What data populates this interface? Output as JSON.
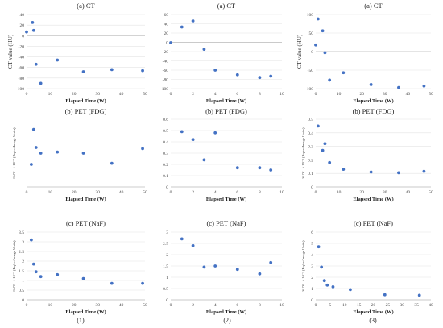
{
  "chart_data": [
    {
      "type": "scatter",
      "title": "(a) CT",
      "xlabel": "Elapsed Time (W)",
      "ylabel": "CT value (HU)",
      "xlim": [
        0,
        50
      ],
      "ylim": [
        -100,
        40
      ],
      "xticks": [
        0,
        10,
        20,
        30,
        40,
        50
      ],
      "yticks": [
        -100,
        -80,
        -60,
        -40,
        -20,
        0,
        20,
        40
      ],
      "grid": true,
      "color": "#4472c4",
      "x": [
        0,
        2.5,
        3,
        4,
        6,
        13,
        24,
        36,
        49
      ],
      "y": [
        7,
        25,
        10,
        -54,
        -90,
        -46,
        -68,
        -64,
        -66
      ]
    },
    {
      "type": "scatter",
      "title": "(a) CT",
      "xlabel": "Elapsed Time (W)",
      "ylabel": "",
      "xlim": [
        0,
        10
      ],
      "ylim": [
        -100,
        60
      ],
      "xticks": [
        0,
        2,
        4,
        6,
        8,
        10
      ],
      "yticks": [
        -100,
        -80,
        -60,
        -40,
        -20,
        0,
        20,
        40,
        60
      ],
      "grid": true,
      "color": "#4472c4",
      "x": [
        0,
        1,
        2,
        3,
        4,
        6,
        8,
        9
      ],
      "y": [
        -1,
        33,
        46,
        -15,
        -60,
        -70,
        -76,
        -73
      ]
    },
    {
      "type": "scatter",
      "title": "(a) CT",
      "xlabel": "Elapsed Time (W)",
      "ylabel": "CT value (HU)",
      "xlim": [
        0,
        50
      ],
      "ylim": [
        -100,
        100
      ],
      "xticks": [
        0,
        10,
        20,
        30,
        40,
        50
      ],
      "yticks": [
        -100,
        -50,
        0,
        50,
        100
      ],
      "grid": true,
      "color": "#4472c4",
      "x": [
        0,
        1,
        3,
        4,
        6,
        12,
        24,
        36,
        47
      ],
      "y": [
        18,
        88,
        56,
        -3,
        -77,
        -57,
        -89,
        -97,
        -93
      ]
    },
    {
      "type": "scatter",
      "title": "(b) PET (FDG)",
      "xlabel": "Elapsed Time (W)",
      "ylabel": "SUV",
      "yunit": "× 10⁻³ (Bq/cc/Image Units)",
      "xlim": [
        0,
        50
      ],
      "ylim": [
        0,
        0.3
      ],
      "xticks": [
        0,
        10,
        20,
        30,
        40,
        50
      ],
      "yticks": [],
      "grid": false,
      "color": "#4472c4",
      "x": [
        2,
        3,
        4,
        6,
        13,
        24,
        36,
        49
      ],
      "y": [
        0.1,
        0.255,
        0.175,
        0.15,
        0.155,
        0.15,
        0.105,
        0.17
      ]
    },
    {
      "type": "scatter",
      "title": "(b) PET (FDG)",
      "xlabel": "Elapsed Time (W)",
      "ylabel": "",
      "xlim": [
        0,
        10
      ],
      "ylim": [
        0,
        0.6
      ],
      "xticks": [
        0,
        2,
        4,
        6,
        8,
        10
      ],
      "yticks": [
        0,
        0.1,
        0.2,
        0.3,
        0.4,
        0.5,
        0.6
      ],
      "grid": true,
      "color": "#4472c4",
      "x": [
        1,
        2,
        3,
        4,
        6,
        8,
        9
      ],
      "y": [
        0.49,
        0.42,
        0.24,
        0.48,
        0.17,
        0.17,
        0.15
      ]
    },
    {
      "type": "scatter",
      "title": "(b) PET (FDG)",
      "xlabel": "Elapsed Time (W)",
      "ylabel": "SUV",
      "yunit": "× 10⁻³ (Bq/cc/Image Units)",
      "xlim": [
        0,
        50
      ],
      "ylim": [
        0,
        0.5
      ],
      "xticks": [
        0,
        10,
        20,
        30,
        40,
        50
      ],
      "yticks": [
        0,
        0.1,
        0.2,
        0.3,
        0.4,
        0.5
      ],
      "grid": true,
      "color": "#4472c4",
      "x": [
        1,
        3,
        4,
        6,
        12,
        24,
        36,
        47
      ],
      "y": [
        0.45,
        0.27,
        0.32,
        0.18,
        0.13,
        0.11,
        0.105,
        0.115
      ]
    },
    {
      "type": "scatter",
      "title": "(c) PET (NaF)",
      "xlabel": "Elapsed Time (W)",
      "ylabel": "SUV",
      "yunit": "× 10⁻³ (Bq/cc/Image Units)",
      "xlim": [
        0,
        50
      ],
      "ylim": [
        0,
        3.5
      ],
      "xticks": [
        0,
        10,
        20,
        30,
        40,
        50
      ],
      "yticks": [
        0,
        0.5,
        1,
        1.5,
        2,
        2.5,
        3,
        3.5
      ],
      "grid": true,
      "color": "#4472c4",
      "x": [
        2,
        3,
        4,
        6,
        13,
        24,
        36,
        49
      ],
      "y": [
        3.1,
        1.85,
        1.45,
        1.2,
        1.3,
        1.1,
        0.85,
        0.85
      ]
    },
    {
      "type": "scatter",
      "title": "(c) PET (NaF)",
      "xlabel": "Elapsed Time (W)",
      "ylabel": "",
      "xlim": [
        0,
        10
      ],
      "ylim": [
        0,
        3
      ],
      "xticks": [
        0,
        2,
        4,
        6,
        8,
        10
      ],
      "yticks": [
        0,
        0.5,
        1,
        1.5,
        2,
        2.5,
        3
      ],
      "grid": true,
      "color": "#4472c4",
      "x": [
        1,
        2,
        3,
        4,
        6,
        8,
        9
      ],
      "y": [
        2.7,
        2.4,
        1.45,
        1.5,
        1.35,
        1.15,
        1.65
      ]
    },
    {
      "type": "scatter",
      "title": "(c) PET (NaF)",
      "xlabel": "Elapsed Time (W)",
      "ylabel": "SUV",
      "yunit": "× 10⁻³ (Bq/cc/Image Units)",
      "xlim": [
        0,
        40
      ],
      "ylim": [
        0,
        6
      ],
      "xticks": [
        0,
        5,
        10,
        15,
        20,
        25,
        30,
        35,
        40
      ],
      "yticks": [
        0,
        1,
        2,
        3,
        4,
        5,
        6
      ],
      "grid": true,
      "color": "#4472c4",
      "x": [
        1,
        2,
        3,
        4,
        6,
        12,
        24,
        36
      ],
      "y": [
        4.7,
        2.9,
        1.7,
        1.3,
        1.15,
        0.9,
        0.45,
        0.4
      ]
    }
  ],
  "captions": [
    "(1)",
    "(2)",
    "(3)"
  ]
}
